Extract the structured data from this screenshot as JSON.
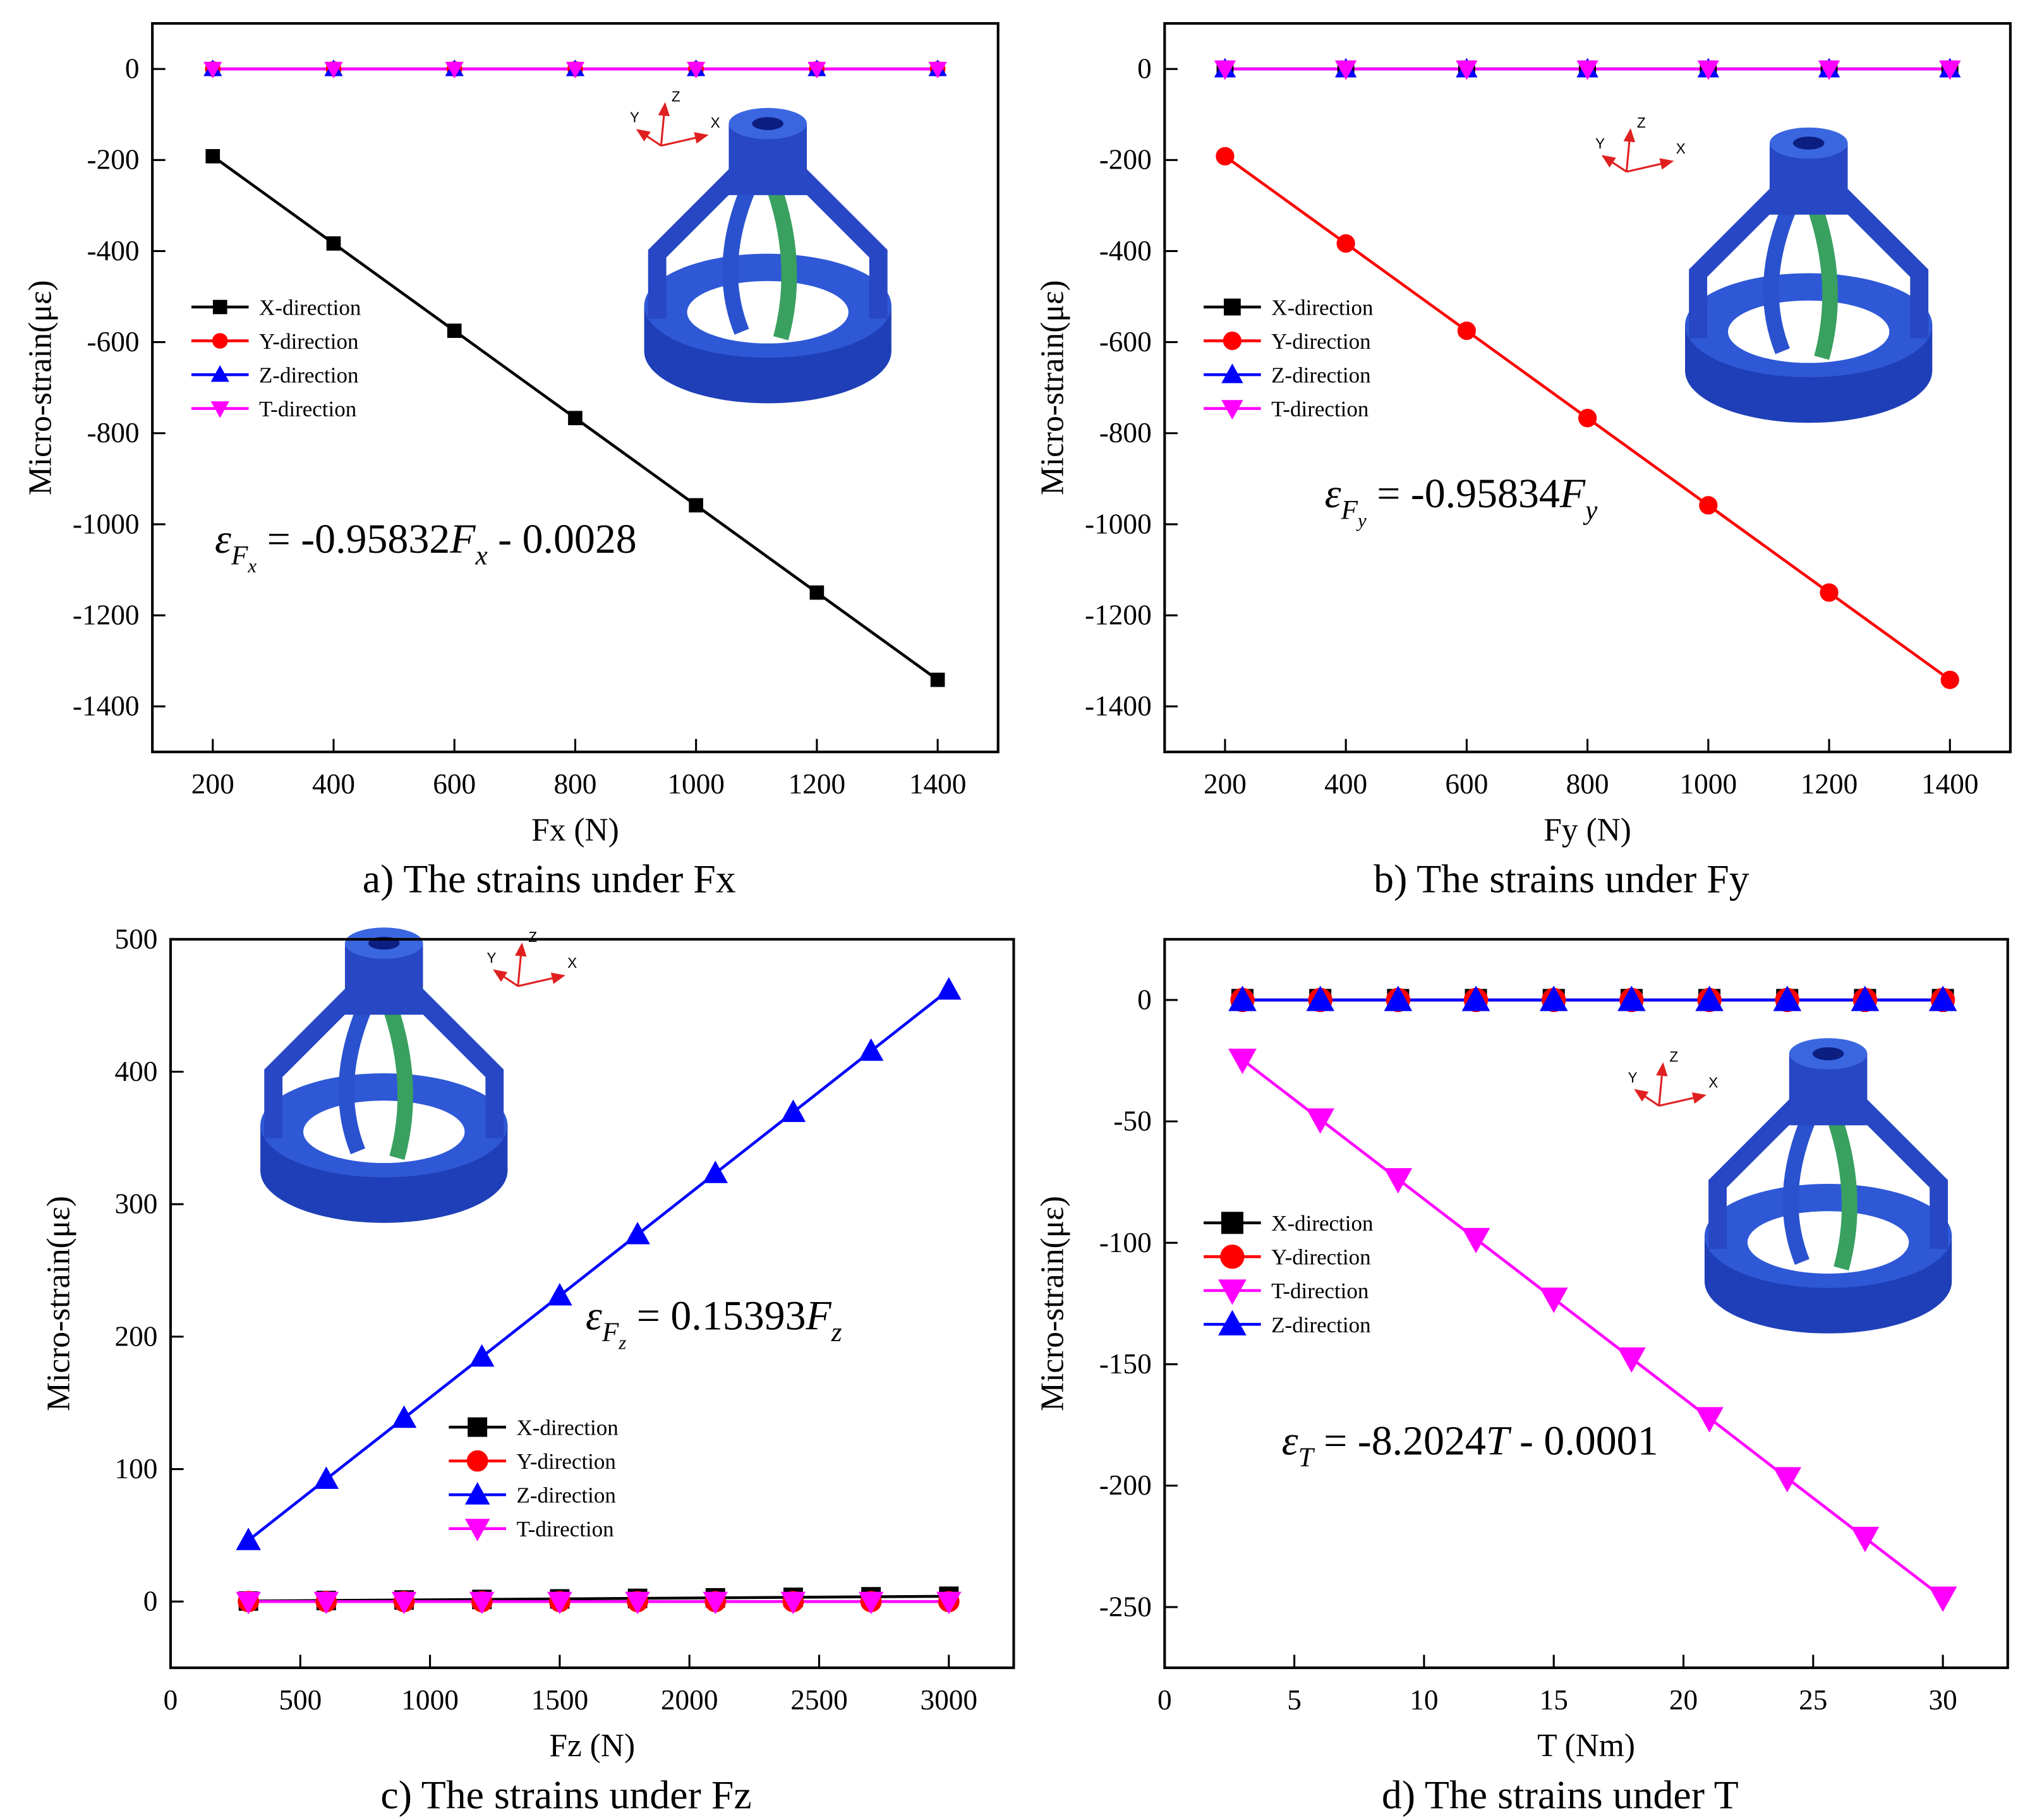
{
  "chart_data": [
    {
      "type": "line",
      "caption": "a)  The strains under Fx",
      "x_label": "Fx (N)",
      "y_label": "Micro-strain(με)",
      "x": [
        200,
        400,
        600,
        800,
        1000,
        1200,
        1400
      ],
      "xlim": [
        100,
        1500
      ],
      "xticks": [
        200,
        400,
        600,
        800,
        1000,
        1200,
        1400
      ],
      "ylim": [
        -1500,
        100
      ],
      "yticks": [
        -1400,
        -1200,
        -1000,
        -800,
        -600,
        -400,
        -200,
        0
      ],
      "legend": "center left",
      "series": [
        {
          "name": "X-direction",
          "color": "#000000",
          "marker": "square",
          "values": [
            -191.7,
            -383.3,
            -575,
            -766.7,
            -958.3,
            -1150,
            -1341.6
          ]
        },
        {
          "name": "Y-direction",
          "color": "#ff0000",
          "marker": "circle",
          "values": [
            0,
            0,
            0,
            0,
            0,
            0,
            0
          ]
        },
        {
          "name": "Z-direction",
          "color": "#0000ff",
          "marker": "triangle-up",
          "values": [
            0,
            0,
            0,
            0,
            0,
            0,
            0
          ]
        },
        {
          "name": "T-direction",
          "color": "#ff00ff",
          "marker": "triangle-down",
          "values": [
            0,
            0,
            0,
            0,
            0,
            0,
            0
          ]
        }
      ],
      "annotation": [
        {
          "t": "ε",
          "s": 0,
          "i": true
        },
        {
          "t": "F",
          "s": 1,
          "i": true
        },
        {
          "t": "x",
          "s": 2,
          "i": true
        },
        {
          "t": " = -0.95832",
          "s": 0,
          "i": false
        },
        {
          "t": "F",
          "s": 0,
          "i": true
        },
        {
          "t": "x",
          "s": 1,
          "i": true
        },
        {
          "t": " - 0.0028",
          "s": 0,
          "i": false
        }
      ],
      "axis_glyph": [
        "X",
        "Y",
        "Z"
      ]
    },
    {
      "type": "line",
      "caption": "b)  The strains under Fy",
      "x_label": "Fy (N)",
      "y_label": "Micro-strain(με)",
      "x": [
        200,
        400,
        600,
        800,
        1000,
        1200,
        1400
      ],
      "xlim": [
        100,
        1500
      ],
      "xticks": [
        200,
        400,
        600,
        800,
        1000,
        1200,
        1400
      ],
      "ylim": [
        -1500,
        100
      ],
      "yticks": [
        -1400,
        -1200,
        -1000,
        -800,
        -600,
        -400,
        -200,
        0
      ],
      "legend": "center left",
      "series": [
        {
          "name": "X-direction",
          "color": "#000000",
          "marker": "square",
          "values": [
            0,
            0,
            0,
            0,
            0,
            0,
            0
          ]
        },
        {
          "name": "Y-direction",
          "color": "#ff0000",
          "marker": "circle",
          "values": [
            -191.7,
            -383.3,
            -575,
            -766.7,
            -958.3,
            -1150,
            -1341.7
          ]
        },
        {
          "name": "Z-direction",
          "color": "#0000ff",
          "marker": "triangle-up",
          "values": [
            0,
            0,
            0,
            0,
            0,
            0,
            0
          ]
        },
        {
          "name": "T-direction",
          "color": "#ff00ff",
          "marker": "triangle-down",
          "values": [
            0,
            0,
            0,
            0,
            0,
            0,
            0
          ]
        }
      ],
      "annotation": [
        {
          "t": "ε",
          "s": 0,
          "i": true
        },
        {
          "t": "F",
          "s": 1,
          "i": true
        },
        {
          "t": "y",
          "s": 2,
          "i": true
        },
        {
          "t": " = -0.95834",
          "s": 0,
          "i": false
        },
        {
          "t": "F",
          "s": 0,
          "i": true
        },
        {
          "t": "y",
          "s": 1,
          "i": true
        }
      ],
      "axis_glyph": [
        "X",
        "Y",
        "Z"
      ]
    },
    {
      "type": "line",
      "caption": "c)  The strains under Fz",
      "x_label": "Fz (N)",
      "y_label": "Micro-strain(με)",
      "x": [
        300,
        600,
        900,
        1200,
        1500,
        1800,
        2100,
        2400,
        2700,
        3000
      ],
      "xlim": [
        0,
        3250
      ],
      "xticks": [
        0,
        500,
        1000,
        1500,
        2000,
        2500,
        3000
      ],
      "ylim": [
        -50,
        500
      ],
      "yticks": [
        0,
        100,
        200,
        300,
        400,
        500
      ],
      "legend": "lower center",
      "series": [
        {
          "name": "X-direction",
          "color": "#000000",
          "marker": "square",
          "values": [
            0.4,
            0.8,
            1.2,
            1.6,
            2,
            2.4,
            2.8,
            3.2,
            3.6,
            4
          ]
        },
        {
          "name": "Y-direction",
          "color": "#ff0000",
          "marker": "circle",
          "values": [
            0,
            0,
            0,
            0,
            0,
            0,
            0,
            0,
            0,
            0
          ]
        },
        {
          "name": "Z-direction",
          "color": "#0000ff",
          "marker": "triangle-up",
          "values": [
            46.2,
            92.4,
            138.5,
            184.7,
            230.9,
            277.1,
            323.3,
            369.4,
            415.6,
            461.8
          ]
        },
        {
          "name": "T-direction",
          "color": "#ff00ff",
          "marker": "triangle-down",
          "values": [
            0,
            0,
            0,
            0,
            0,
            0,
            0,
            0,
            0,
            0
          ]
        }
      ],
      "annotation": [
        {
          "t": "ε",
          "s": 0,
          "i": true
        },
        {
          "t": "F",
          "s": 1,
          "i": true
        },
        {
          "t": "z",
          "s": 2,
          "i": true
        },
        {
          "t": " = 0.15393",
          "s": 0,
          "i": false
        },
        {
          "t": "F",
          "s": 0,
          "i": true
        },
        {
          "t": "z",
          "s": 1,
          "i": true
        }
      ],
      "axis_glyph": [
        "X",
        "Y",
        "Z"
      ]
    },
    {
      "type": "line",
      "caption": "d)  The strains under T",
      "x_label": "T (Nm)",
      "y_label": "Micro-strain(με)",
      "x": [
        3,
        6,
        9,
        12,
        15,
        18,
        21,
        24,
        27,
        30
      ],
      "xlim": [
        0,
        32.5
      ],
      "xticks": [
        0,
        5,
        10,
        15,
        20,
        25,
        30
      ],
      "ylim": [
        -275,
        25
      ],
      "yticks": [
        -250,
        -200,
        -150,
        -100,
        -50,
        0
      ],
      "legend": "center left",
      "series": [
        {
          "name": "X-direction",
          "color": "#000000",
          "marker": "square",
          "values": [
            0,
            0,
            0,
            0,
            0,
            0,
            0,
            0,
            0,
            0
          ]
        },
        {
          "name": "Y-direction",
          "color": "#ff0000",
          "marker": "circle",
          "values": [
            0,
            0,
            0,
            0,
            0,
            0,
            0,
            0,
            0,
            0
          ]
        },
        {
          "name": "T-direction",
          "color": "#ff00ff",
          "marker": "triangle-down",
          "values": [
            -24.6,
            -49.2,
            -73.8,
            -98.4,
            -123,
            -147.6,
            -172.2,
            -196.9,
            -221.5,
            -246.1
          ]
        },
        {
          "name": "Z-direction",
          "color": "#0000ff",
          "marker": "triangle-up",
          "values": [
            0,
            0,
            0,
            0,
            0,
            0,
            0,
            0,
            0,
            0
          ]
        }
      ],
      "annotation": [
        {
          "t": "ε",
          "s": 0,
          "i": true
        },
        {
          "t": "T",
          "s": 1,
          "i": true
        },
        {
          "t": " = -8.2024",
          "s": 0,
          "i": false
        },
        {
          "t": "T",
          "s": 0,
          "i": true
        },
        {
          "t": " - 0.0001",
          "s": 0,
          "i": false
        }
      ],
      "axis_glyph": [
        "X",
        "Y",
        "Z"
      ]
    }
  ]
}
